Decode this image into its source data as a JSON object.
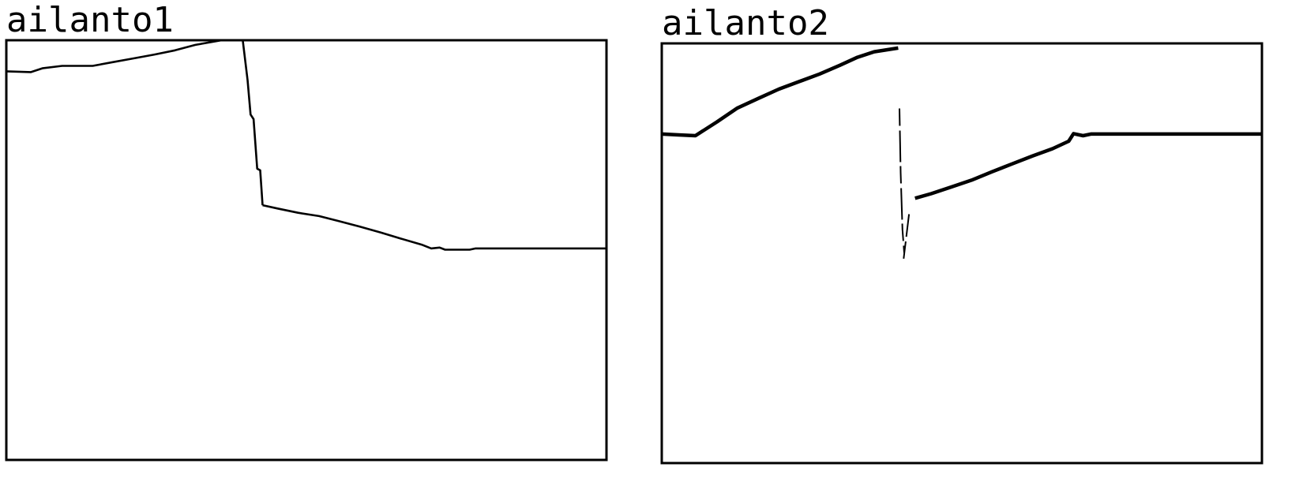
{
  "chart_data": [
    {
      "type": "line",
      "title": "ailanto1",
      "xlabel": "",
      "ylabel": "",
      "xlim": [
        0,
        100
      ],
      "ylim": [
        0,
        100
      ],
      "grid": false,
      "legend": "none",
      "color": "#000000",
      "segments": [
        {
          "points": [
            [
              0,
              92.6
            ],
            [
              4.1,
              92.4
            ],
            [
              6,
              93.3
            ],
            [
              9.3,
              93.9
            ],
            [
              14.4,
              93.9
            ],
            [
              17.8,
              94.8
            ],
            [
              21.3,
              95.7
            ],
            [
              24.7,
              96.6
            ],
            [
              28.1,
              97.6
            ],
            [
              31.5,
              98.9
            ],
            [
              35.9,
              100
            ],
            [
              39.4,
              100
            ]
          ]
        },
        {
          "points": [
            [
              39.4,
              100
            ],
            [
              40.2,
              90.5
            ],
            [
              40.7,
              82.3
            ],
            [
              41.2,
              81.2
            ],
            [
              41.8,
              69.4
            ],
            [
              42.3,
              69.0
            ],
            [
              42.7,
              60.7
            ]
          ]
        },
        {
          "points": [
            [
              42.7,
              60.7
            ],
            [
              45.2,
              59.9
            ],
            [
              48.6,
              58.9
            ],
            [
              52.1,
              58.1
            ],
            [
              55.4,
              56.9
            ],
            [
              58.9,
              55.6
            ],
            [
              62.4,
              54.2
            ],
            [
              65.8,
              52.7
            ],
            [
              69.2,
              51.3
            ],
            [
              70.8,
              50.4
            ],
            [
              72.2,
              50.6
            ],
            [
              73.1,
              50.1
            ],
            [
              77.2,
              50.1
            ],
            [
              78.2,
              50.4
            ],
            [
              100,
              50.4
            ]
          ]
        }
      ]
    },
    {
      "type": "line",
      "title": "ailanto2",
      "xlabel": "",
      "ylabel": "",
      "xlim": [
        0,
        100
      ],
      "ylim": [
        0,
        100
      ],
      "grid": false,
      "legend": "none",
      "color": "#000000",
      "segments": [
        {
          "points": [
            [
              0,
              78.4
            ],
            [
              2.8,
              78.2
            ],
            [
              5.6,
              78.0
            ],
            [
              9.2,
              81.3
            ],
            [
              12.6,
              84.6
            ],
            [
              16.1,
              86.9
            ],
            [
              19.5,
              89.1
            ],
            [
              22.9,
              90.9
            ],
            [
              26.3,
              92.7
            ],
            [
              29.7,
              94.8
            ],
            [
              32.6,
              96.7
            ],
            [
              35.4,
              98.0
            ],
            [
              39.4,
              98.9
            ]
          ],
          "weight": "bold"
        },
        {
          "points": [
            [
              39.6,
              84.5
            ],
            [
              39.8,
              69.2
            ],
            [
              40.1,
              55.6
            ],
            [
              40.4,
              50.1
            ]
          ],
          "weight": "thin",
          "dashed": true
        },
        {
          "points": [
            [
              40.3,
              48.7
            ],
            [
              41.2,
              59.3
            ]
          ],
          "weight": "thin",
          "dashed": true
        },
        {
          "points": [
            [
              42.2,
              63.1
            ],
            [
              44.9,
              64.2
            ],
            [
              48.3,
              65.8
            ],
            [
              51.6,
              67.4
            ],
            [
              55.0,
              69.4
            ],
            [
              58.4,
              71.3
            ],
            [
              61.8,
              73.2
            ],
            [
              65.1,
              74.9
            ],
            [
              67.8,
              76.7
            ],
            [
              68.6,
              78.5
            ],
            [
              70.2,
              78.0
            ],
            [
              71.5,
              78.4
            ],
            [
              76.2,
              78.4
            ],
            [
              100,
              78.4
            ]
          ],
          "weight": "bold"
        }
      ]
    }
  ]
}
